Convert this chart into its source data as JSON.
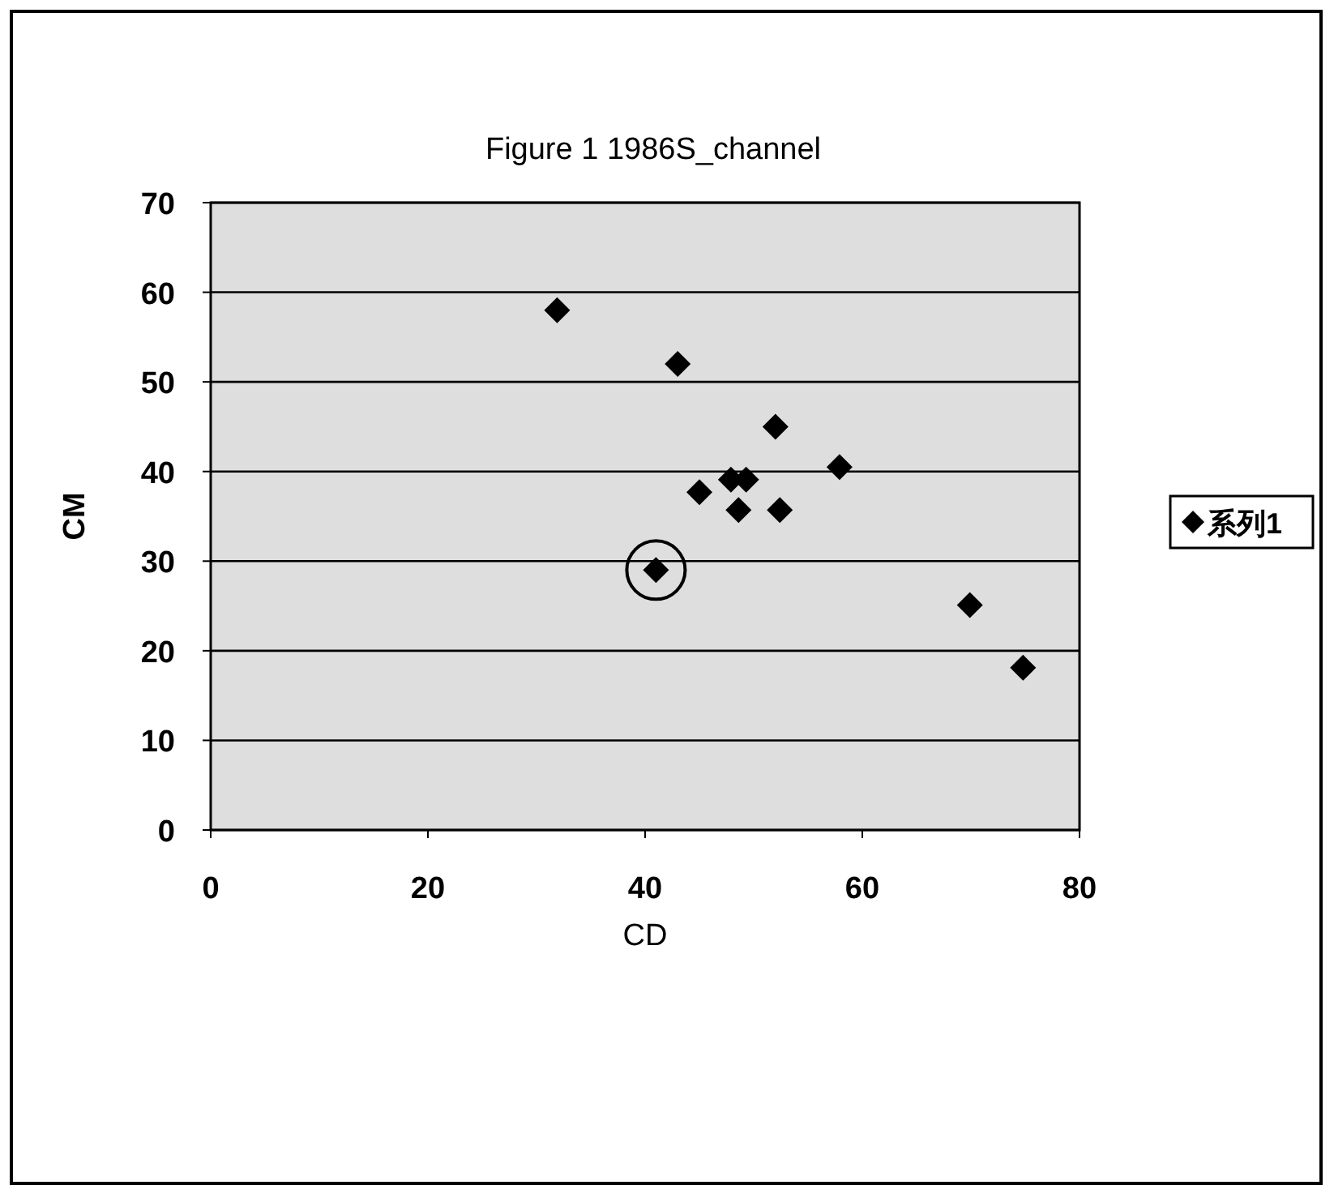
{
  "chart_data": {
    "type": "scatter",
    "title": "Figure 1 1986S_channel",
    "xlabel": "CD",
    "ylabel": "CM",
    "xlim": [
      0,
      80
    ],
    "xticks": [
      0,
      20,
      40,
      60,
      80
    ],
    "ylim": [
      0,
      70
    ],
    "yticks": [
      0,
      10,
      20,
      30,
      40,
      50,
      60,
      70
    ],
    "grid": "y",
    "legend": "right",
    "marker": "diamond",
    "series": [
      {
        "name": "系列1",
        "color": "#000000",
        "x": [
          31.9,
          43.0,
          52.0,
          57.9,
          47.9,
          49.3,
          45.0,
          48.6,
          52.4,
          41.0,
          69.9,
          74.8
        ],
        "values": [
          58.0,
          52.0,
          45.0,
          40.5,
          39.1,
          39.1,
          37.7,
          35.7,
          35.7,
          29.0,
          25.1,
          18.1
        ]
      }
    ]
  }
}
